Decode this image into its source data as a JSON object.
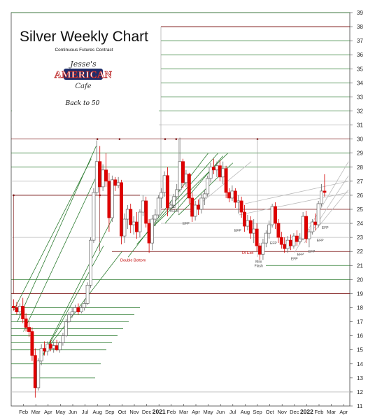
{
  "chart_data": {
    "type": "candlestick",
    "title": "Silver Weekly Chart",
    "subtitle": "Continuous Futures Contract",
    "note": "Back to 50",
    "logo": {
      "top": "Jesse's",
      "middle": "AMERICAN",
      "bottom": "Cafe"
    },
    "ylim": [
      11,
      39
    ],
    "yticks": [
      11,
      12,
      13,
      14,
      15,
      16,
      17,
      18,
      19,
      20,
      21,
      22,
      23,
      24,
      25,
      26,
      27,
      28,
      29,
      30,
      31,
      32,
      33,
      34,
      35,
      36,
      37,
      38,
      39
    ],
    "xlim": [
      0,
      27.5
    ],
    "xticks": [
      {
        "label": "Feb",
        "x": 1
      },
      {
        "label": "Mar",
        "x": 2
      },
      {
        "label": "Apr",
        "x": 3
      },
      {
        "label": "May",
        "x": 4
      },
      {
        "label": "Jun",
        "x": 5
      },
      {
        "label": "Jul",
        "x": 6
      },
      {
        "label": "Aug",
        "x": 7
      },
      {
        "label": "Sep",
        "x": 8
      },
      {
        "label": "Oct",
        "x": 9
      },
      {
        "label": "Nov",
        "x": 10
      },
      {
        "label": "Dec",
        "x": 11
      },
      {
        "label": "2021",
        "x": 12,
        "year": true
      },
      {
        "label": "Feb",
        "x": 13
      },
      {
        "label": "Mar",
        "x": 14
      },
      {
        "label": "Apr",
        "x": 15
      },
      {
        "label": "May",
        "x": 16
      },
      {
        "label": "Jun",
        "x": 17
      },
      {
        "label": "Jul",
        "x": 18
      },
      {
        "label": "Aug",
        "x": 19
      },
      {
        "label": "Sep",
        "x": 20
      },
      {
        "label": "Oct",
        "x": 21
      },
      {
        "label": "Nov",
        "x": 22
      },
      {
        "label": "Dec",
        "x": 23
      },
      {
        "label": "2022",
        "x": 24,
        "year": true
      },
      {
        "label": "Feb",
        "x": 25
      },
      {
        "label": "Mar",
        "x": 26
      },
      {
        "label": "Apr",
        "x": 27
      }
    ],
    "annotations": [
      {
        "text": "Double Bottom",
        "x": 9.9,
        "y": 21.3,
        "red": true
      },
      {
        "text": "50",
        "x": 13.2,
        "y": 25.1,
        "red": false
      },
      {
        "text": "61.8",
        "x": 13.3,
        "y": 24.8,
        "red": false
      },
      {
        "text": "EFP",
        "x": 14.2,
        "y": 23.9,
        "red": false
      },
      {
        "text": "OI Exit",
        "x": 19.2,
        "y": 21.8,
        "red": true
      },
      {
        "text": "Mini",
        "x": 20.1,
        "y": 21.2,
        "red": false
      },
      {
        "text": "Flash",
        "x": 20.1,
        "y": 20.9,
        "red": false
      },
      {
        "text": "EFP",
        "x": 18.4,
        "y": 23.4,
        "red": false
      },
      {
        "text": "EFP",
        "x": 21.3,
        "y": 22.5,
        "red": false
      },
      {
        "text": "EFP",
        "x": 23.0,
        "y": 21.4,
        "red": false
      },
      {
        "text": "EFP",
        "x": 23.5,
        "y": 21.7,
        "red": false
      },
      {
        "text": "EFP",
        "x": 24.4,
        "y": 21.9,
        "red": false
      },
      {
        "text": "EFP",
        "x": 25.1,
        "y": 22.7,
        "red": false
      },
      {
        "text": "EFP",
        "x": 25.5,
        "y": 23.6,
        "red": false
      }
    ],
    "candles": [
      {
        "x": 0.2,
        "o": 18.1,
        "h": 18.6,
        "l": 17.8,
        "c": 18.0
      },
      {
        "x": 0.45,
        "o": 18.0,
        "h": 18.4,
        "l": 17.5,
        "c": 17.7
      },
      {
        "x": 0.7,
        "o": 17.7,
        "h": 18.3,
        "l": 17.4,
        "c": 18.1
      },
      {
        "x": 0.95,
        "o": 18.1,
        "h": 18.7,
        "l": 16.9,
        "c": 17.2
      },
      {
        "x": 1.2,
        "o": 17.2,
        "h": 17.6,
        "l": 16.3,
        "c": 16.6
      },
      {
        "x": 1.45,
        "o": 16.6,
        "h": 17.0,
        "l": 15.9,
        "c": 16.3
      },
      {
        "x": 1.7,
        "o": 16.3,
        "h": 16.6,
        "l": 14.2,
        "c": 14.6
      },
      {
        "x": 1.95,
        "o": 14.6,
        "h": 15.1,
        "l": 11.6,
        "c": 12.3
      },
      {
        "x": 2.2,
        "o": 12.3,
        "h": 14.4,
        "l": 12.1,
        "c": 14.2
      },
      {
        "x": 2.45,
        "o": 14.2,
        "h": 15.4,
        "l": 13.9,
        "c": 15.1
      },
      {
        "x": 2.7,
        "o": 15.1,
        "h": 15.6,
        "l": 14.6,
        "c": 14.9
      },
      {
        "x": 2.95,
        "o": 14.9,
        "h": 15.6,
        "l": 14.6,
        "c": 15.4
      },
      {
        "x": 3.2,
        "o": 15.4,
        "h": 15.7,
        "l": 14.9,
        "c": 15.1
      },
      {
        "x": 3.45,
        "o": 15.1,
        "h": 15.6,
        "l": 14.8,
        "c": 15.3
      },
      {
        "x": 3.7,
        "o": 15.3,
        "h": 15.7,
        "l": 14.9,
        "c": 15.0
      },
      {
        "x": 3.95,
        "o": 15.0,
        "h": 15.6,
        "l": 14.8,
        "c": 15.5
      },
      {
        "x": 4.2,
        "o": 15.5,
        "h": 16.2,
        "l": 15.3,
        "c": 16.0
      },
      {
        "x": 4.45,
        "o": 16.0,
        "h": 17.2,
        "l": 15.9,
        "c": 17.0
      },
      {
        "x": 4.7,
        "o": 17.0,
        "h": 17.7,
        "l": 16.9,
        "c": 17.5
      },
      {
        "x": 4.95,
        "o": 17.5,
        "h": 18.0,
        "l": 17.3,
        "c": 17.7
      },
      {
        "x": 5.2,
        "o": 17.7,
        "h": 18.2,
        "l": 17.6,
        "c": 18.0
      },
      {
        "x": 5.45,
        "o": 18.0,
        "h": 18.3,
        "l": 17.5,
        "c": 17.7
      },
      {
        "x": 5.7,
        "o": 17.7,
        "h": 18.2,
        "l": 17.6,
        "c": 18.0
      },
      {
        "x": 5.95,
        "o": 18.0,
        "h": 18.6,
        "l": 17.8,
        "c": 18.3
      },
      {
        "x": 6.2,
        "o": 18.3,
        "h": 19.8,
        "l": 18.2,
        "c": 19.6
      },
      {
        "x": 6.45,
        "o": 19.6,
        "h": 23.0,
        "l": 19.4,
        "c": 22.8
      },
      {
        "x": 6.7,
        "o": 22.8,
        "h": 26.5,
        "l": 22.6,
        "c": 26.2
      },
      {
        "x": 6.95,
        "o": 26.2,
        "h": 29.9,
        "l": 26.0,
        "c": 28.4
      },
      {
        "x": 7.2,
        "o": 28.4,
        "h": 29.5,
        "l": 25.8,
        "c": 26.6
      },
      {
        "x": 7.45,
        "o": 26.6,
        "h": 28.2,
        "l": 26.3,
        "c": 27.8
      },
      {
        "x": 7.7,
        "o": 27.8,
        "h": 29.0,
        "l": 26.6,
        "c": 27.0
      },
      {
        "x": 7.95,
        "o": 27.0,
        "h": 27.6,
        "l": 23.4,
        "c": 24.4
      },
      {
        "x": 8.2,
        "o": 24.4,
        "h": 27.4,
        "l": 24.1,
        "c": 27.1
      },
      {
        "x": 8.45,
        "o": 27.1,
        "h": 27.3,
        "l": 26.3,
        "c": 26.7
      },
      {
        "x": 8.7,
        "o": 26.7,
        "h": 27.3,
        "l": 26.5,
        "c": 26.9
      },
      {
        "x": 8.95,
        "o": 26.9,
        "h": 27.1,
        "l": 22.5,
        "c": 23.1
      },
      {
        "x": 9.2,
        "o": 23.1,
        "h": 24.7,
        "l": 22.6,
        "c": 24.3
      },
      {
        "x": 9.45,
        "o": 24.3,
        "h": 25.3,
        "l": 23.6,
        "c": 25.0
      },
      {
        "x": 9.7,
        "o": 25.0,
        "h": 25.4,
        "l": 23.3,
        "c": 23.9
      },
      {
        "x": 9.95,
        "o": 23.9,
        "h": 24.5,
        "l": 23.2,
        "c": 24.1
      },
      {
        "x": 10.2,
        "o": 24.1,
        "h": 24.8,
        "l": 22.9,
        "c": 23.4
      },
      {
        "x": 10.45,
        "o": 23.4,
        "h": 25.0,
        "l": 23.0,
        "c": 24.8
      },
      {
        "x": 10.7,
        "o": 24.8,
        "h": 26.0,
        "l": 24.5,
        "c": 25.6
      },
      {
        "x": 10.95,
        "o": 25.6,
        "h": 25.9,
        "l": 23.7,
        "c": 24.0
      },
      {
        "x": 11.2,
        "o": 24.0,
        "h": 24.3,
        "l": 21.9,
        "c": 22.6
      },
      {
        "x": 11.45,
        "o": 22.6,
        "h": 24.6,
        "l": 22.1,
        "c": 24.3
      },
      {
        "x": 11.7,
        "o": 24.3,
        "h": 25.0,
        "l": 23.8,
        "c": 24.6
      },
      {
        "x": 11.95,
        "o": 24.6,
        "h": 26.0,
        "l": 24.4,
        "c": 25.8
      },
      {
        "x": 12.2,
        "o": 25.8,
        "h": 26.5,
        "l": 25.1,
        "c": 26.2
      },
      {
        "x": 12.45,
        "o": 26.2,
        "h": 27.7,
        "l": 25.9,
        "c": 27.4
      },
      {
        "x": 12.7,
        "o": 27.4,
        "h": 28.0,
        "l": 24.5,
        "c": 25.1
      },
      {
        "x": 12.95,
        "o": 25.1,
        "h": 25.6,
        "l": 24.8,
        "c": 25.3
      },
      {
        "x": 13.2,
        "o": 25.3,
        "h": 26.1,
        "l": 25.1,
        "c": 25.9
      },
      {
        "x": 13.45,
        "o": 25.9,
        "h": 26.8,
        "l": 25.7,
        "c": 26.4
      },
      {
        "x": 13.7,
        "o": 26.4,
        "h": 30.1,
        "l": 26.2,
        "c": 28.4
      },
      {
        "x": 13.95,
        "o": 28.4,
        "h": 28.6,
        "l": 26.5,
        "c": 26.9
      },
      {
        "x": 14.2,
        "o": 26.9,
        "h": 27.8,
        "l": 26.6,
        "c": 27.5
      },
      {
        "x": 14.45,
        "o": 27.5,
        "h": 27.6,
        "l": 25.4,
        "c": 25.8
      },
      {
        "x": 14.7,
        "o": 25.8,
        "h": 26.2,
        "l": 24.1,
        "c": 24.5
      },
      {
        "x": 14.95,
        "o": 24.5,
        "h": 25.6,
        "l": 24.2,
        "c": 25.3
      },
      {
        "x": 15.2,
        "o": 25.3,
        "h": 25.7,
        "l": 24.6,
        "c": 25.0
      },
      {
        "x": 15.45,
        "o": 25.0,
        "h": 26.1,
        "l": 24.7,
        "c": 25.8
      },
      {
        "x": 15.7,
        "o": 25.8,
        "h": 26.4,
        "l": 25.3,
        "c": 26.1
      },
      {
        "x": 15.95,
        "o": 26.1,
        "h": 27.4,
        "l": 25.9,
        "c": 27.2
      },
      {
        "x": 16.2,
        "o": 27.2,
        "h": 28.3,
        "l": 26.9,
        "c": 28.0
      },
      {
        "x": 16.45,
        "o": 28.0,
        "h": 28.6,
        "l": 27.5,
        "c": 27.8
      },
      {
        "x": 16.7,
        "o": 27.8,
        "h": 28.4,
        "l": 27.3,
        "c": 28.1
      },
      {
        "x": 16.95,
        "o": 28.1,
        "h": 28.5,
        "l": 27.0,
        "c": 27.3
      },
      {
        "x": 17.2,
        "o": 27.3,
        "h": 28.4,
        "l": 26.8,
        "c": 27.9
      },
      {
        "x": 17.45,
        "o": 27.9,
        "h": 28.1,
        "l": 25.8,
        "c": 26.2
      },
      {
        "x": 17.7,
        "o": 26.2,
        "h": 26.5,
        "l": 25.5,
        "c": 25.8
      },
      {
        "x": 17.95,
        "o": 25.8,
        "h": 26.7,
        "l": 25.6,
        "c": 26.3
      },
      {
        "x": 18.2,
        "o": 26.3,
        "h": 26.5,
        "l": 25.1,
        "c": 25.5
      },
      {
        "x": 18.45,
        "o": 25.5,
        "h": 26.0,
        "l": 24.7,
        "c": 25.6
      },
      {
        "x": 18.7,
        "o": 25.6,
        "h": 25.9,
        "l": 24.4,
        "c": 24.8
      },
      {
        "x": 18.95,
        "o": 24.8,
        "h": 25.3,
        "l": 23.4,
        "c": 23.8
      },
      {
        "x": 19.2,
        "o": 23.8,
        "h": 24.6,
        "l": 23.5,
        "c": 24.2
      },
      {
        "x": 19.45,
        "o": 24.2,
        "h": 24.5,
        "l": 22.9,
        "c": 23.3
      },
      {
        "x": 19.7,
        "o": 23.3,
        "h": 24.3,
        "l": 22.6,
        "c": 23.6
      },
      {
        "x": 19.95,
        "o": 23.6,
        "h": 24.0,
        "l": 22.0,
        "c": 22.4
      },
      {
        "x": 20.2,
        "o": 22.4,
        "h": 22.6,
        "l": 21.4,
        "c": 21.8
      },
      {
        "x": 20.45,
        "o": 21.8,
        "h": 22.9,
        "l": 21.4,
        "c": 22.6
      },
      {
        "x": 20.7,
        "o": 22.6,
        "h": 23.5,
        "l": 22.3,
        "c": 23.3
      },
      {
        "x": 20.95,
        "o": 23.3,
        "h": 24.2,
        "l": 22.9,
        "c": 23.9
      },
      {
        "x": 21.2,
        "o": 23.9,
        "h": 25.4,
        "l": 23.7,
        "c": 25.2
      },
      {
        "x": 21.45,
        "o": 25.2,
        "h": 25.5,
        "l": 23.6,
        "c": 24.0
      },
      {
        "x": 21.7,
        "o": 24.0,
        "h": 24.3,
        "l": 22.6,
        "c": 23.0
      },
      {
        "x": 21.95,
        "o": 23.0,
        "h": 23.4,
        "l": 22.2,
        "c": 22.5
      },
      {
        "x": 22.2,
        "o": 22.5,
        "h": 23.0,
        "l": 21.9,
        "c": 22.2
      },
      {
        "x": 22.45,
        "o": 22.2,
        "h": 23.1,
        "l": 21.9,
        "c": 22.8
      },
      {
        "x": 22.7,
        "o": 22.8,
        "h": 23.2,
        "l": 22.1,
        "c": 22.4
      },
      {
        "x": 22.95,
        "o": 22.4,
        "h": 23.3,
        "l": 22.2,
        "c": 23.1
      },
      {
        "x": 23.2,
        "o": 23.1,
        "h": 23.5,
        "l": 22.4,
        "c": 22.7
      },
      {
        "x": 23.45,
        "o": 22.7,
        "h": 23.3,
        "l": 22.5,
        "c": 22.9
      },
      {
        "x": 23.7,
        "o": 22.9,
        "h": 24.8,
        "l": 22.8,
        "c": 24.5
      },
      {
        "x": 23.95,
        "o": 24.5,
        "h": 24.9,
        "l": 22.6,
        "c": 22.9
      },
      {
        "x": 24.2,
        "o": 22.9,
        "h": 23.6,
        "l": 22.3,
        "c": 23.4
      },
      {
        "x": 24.45,
        "o": 23.4,
        "h": 24.3,
        "l": 23.2,
        "c": 24.1
      },
      {
        "x": 24.7,
        "o": 24.1,
        "h": 24.7,
        "l": 23.5,
        "c": 23.9
      },
      {
        "x": 24.95,
        "o": 23.9,
        "h": 25.6,
        "l": 23.7,
        "c": 25.4
      },
      {
        "x": 25.2,
        "o": 25.4,
        "h": 26.8,
        "l": 25.2,
        "c": 26.3
      },
      {
        "x": 25.45,
        "o": 26.3,
        "h": 27.5,
        "l": 25.9,
        "c": 26.2
      }
    ]
  }
}
